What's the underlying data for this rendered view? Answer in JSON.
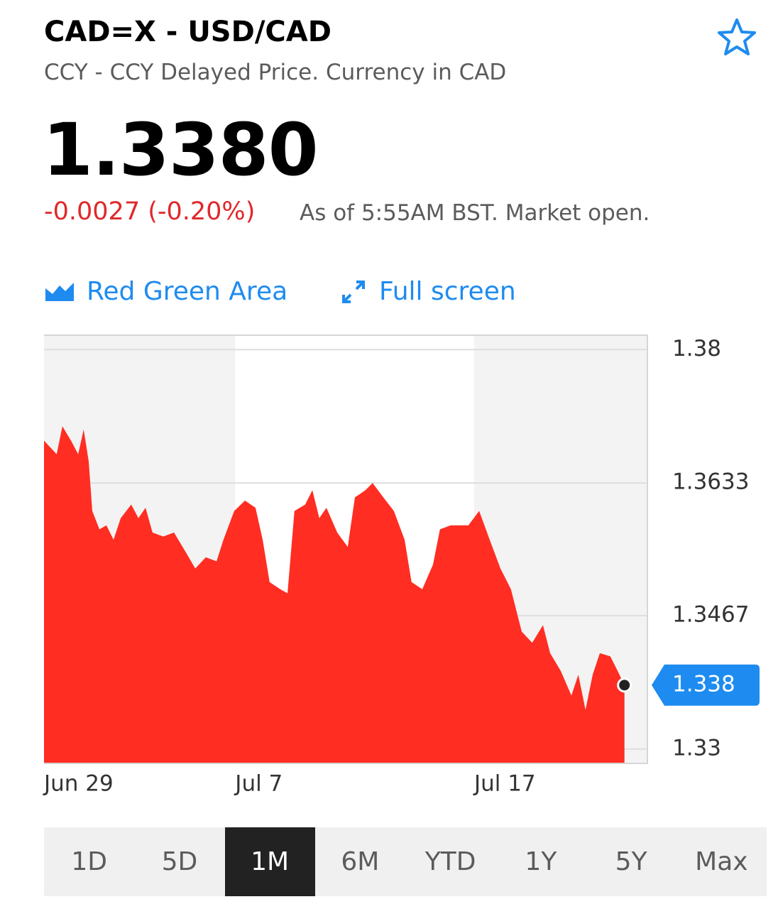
{
  "header": {
    "title": "CAD=X - USD/CAD",
    "subtitle": "CCY - CCY Delayed Price. Currency in CAD",
    "price": "1.3380",
    "change": "-0.0027 (-0.20%)",
    "status": "As of 5:55AM BST. Market open."
  },
  "toolbar": {
    "chart_style": "Red Green Area",
    "full_screen": "Full screen"
  },
  "chart_data": {
    "type": "area",
    "color": "#ff2d22",
    "x": [
      0,
      0.53,
      0.77,
      1.13,
      1.43,
      1.66,
      1.87,
      2.02,
      2.32,
      2.61,
      2.91,
      3.21,
      3.65,
      3.95,
      4.25,
      4.54,
      4.99,
      5.44,
      5.88,
      6.33,
      6.77,
      7.22,
      7.51,
      7.96,
      8.41,
      8.85,
      9.15,
      9.44,
      9.89,
      10.19,
      10.48,
      10.93,
      11.23,
      11.52,
      11.82,
      12.27,
      12.71,
      13.01,
      13.45,
      13.75,
      14.2,
      14.64,
      15.09,
      15.38,
      15.83,
      16.28,
      16.57,
      17.02,
      17.76,
      18.21,
      18.65,
      19.1,
      19.54,
      19.99,
      20.43,
      20.88,
      21.18,
      21.62,
      22.07,
      22.36,
      22.66,
      22.96,
      23.26,
      23.7,
      24.0,
      24.29
    ],
    "values": [
      1.3686,
      1.3669,
      1.3704,
      1.3686,
      1.3669,
      1.37,
      1.366,
      1.3598,
      1.3575,
      1.358,
      1.3562,
      1.3589,
      1.3606,
      1.3589,
      1.3602,
      1.3571,
      1.3566,
      1.3571,
      1.3549,
      1.3526,
      1.354,
      1.3535,
      1.3562,
      1.3598,
      1.3611,
      1.3602,
      1.3562,
      1.3509,
      1.35,
      1.3495,
      1.3598,
      1.3606,
      1.3624,
      1.3589,
      1.3602,
      1.3571,
      1.3553,
      1.3615,
      1.3624,
      1.3633,
      1.3615,
      1.3598,
      1.3562,
      1.3509,
      1.35,
      1.3531,
      1.3575,
      1.358,
      1.358,
      1.3598,
      1.3562,
      1.3526,
      1.35,
      1.3447,
      1.3433,
      1.3455,
      1.342,
      1.3398,
      1.3367,
      1.3393,
      1.3349,
      1.3393,
      1.342,
      1.3416,
      1.3398,
      1.338
    ],
    "xlim": [
      0,
      25.25
    ],
    "ylim": [
      1.3282,
      1.3818
    ],
    "xticks": [
      {
        "value": 0,
        "label": "Jun 29"
      },
      {
        "value": 8,
        "label": "Jul 7"
      },
      {
        "value": 18,
        "label": "Jul 17"
      }
    ],
    "yticks": [
      1.38,
      1.3633,
      1.3467,
      1.33
    ],
    "grid": true,
    "last_price": 1.338,
    "last_price_color": "#1e8bf0"
  },
  "ranges": {
    "labels": [
      "1D",
      "5D",
      "1M",
      "6M",
      "YTD",
      "1Y",
      "5Y",
      "Max"
    ],
    "selected": 2
  }
}
